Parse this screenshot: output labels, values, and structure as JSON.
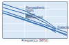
{
  "chart_data": {
    "type": "line",
    "x_label": "Frequency (MHz)",
    "log": "x",
    "grid": true,
    "tick_labels": false,
    "xlim": [
      0.1,
      100
    ],
    "ylim": [
      0,
      100
    ],
    "xticks": [
      0.1,
      1,
      10,
      100
    ],
    "yticks": [
      0,
      20,
      40,
      60,
      80,
      100
    ],
    "series": [
      {
        "name": "Atmospheric",
        "color": "#1f5fa8",
        "x": [
          0.1,
          0.3,
          1,
          3,
          10,
          30
        ],
        "values": [
          95,
          86,
          76,
          64,
          48,
          28
        ]
      },
      {
        "name": "Night",
        "color": "#1f5fa8",
        "x": [
          0.1,
          0.3,
          1,
          3,
          10,
          30
        ],
        "values": [
          85,
          77,
          68,
          57,
          42,
          22
        ]
      },
      {
        "name": "Day",
        "color": "#1f5fa8",
        "x": [
          0.1,
          0.3,
          1,
          3,
          10,
          30
        ],
        "values": [
          70,
          62,
          52,
          42,
          32,
          16
        ]
      },
      {
        "name": "Urban",
        "color": "#1f5fa8",
        "x": [
          0.1,
          1,
          10,
          100
        ],
        "values": [
          76,
          56,
          36,
          16
        ]
      },
      {
        "name": "Residential",
        "color": "#1f5fa8",
        "x": [
          0.1,
          1,
          10,
          100
        ],
        "values": [
          70,
          50,
          30,
          10
        ]
      },
      {
        "name": "Galactic",
        "color": "#1f5fa8",
        "x": [
          10,
          30,
          100
        ],
        "values": [
          30,
          20,
          7
        ]
      }
    ]
  }
}
